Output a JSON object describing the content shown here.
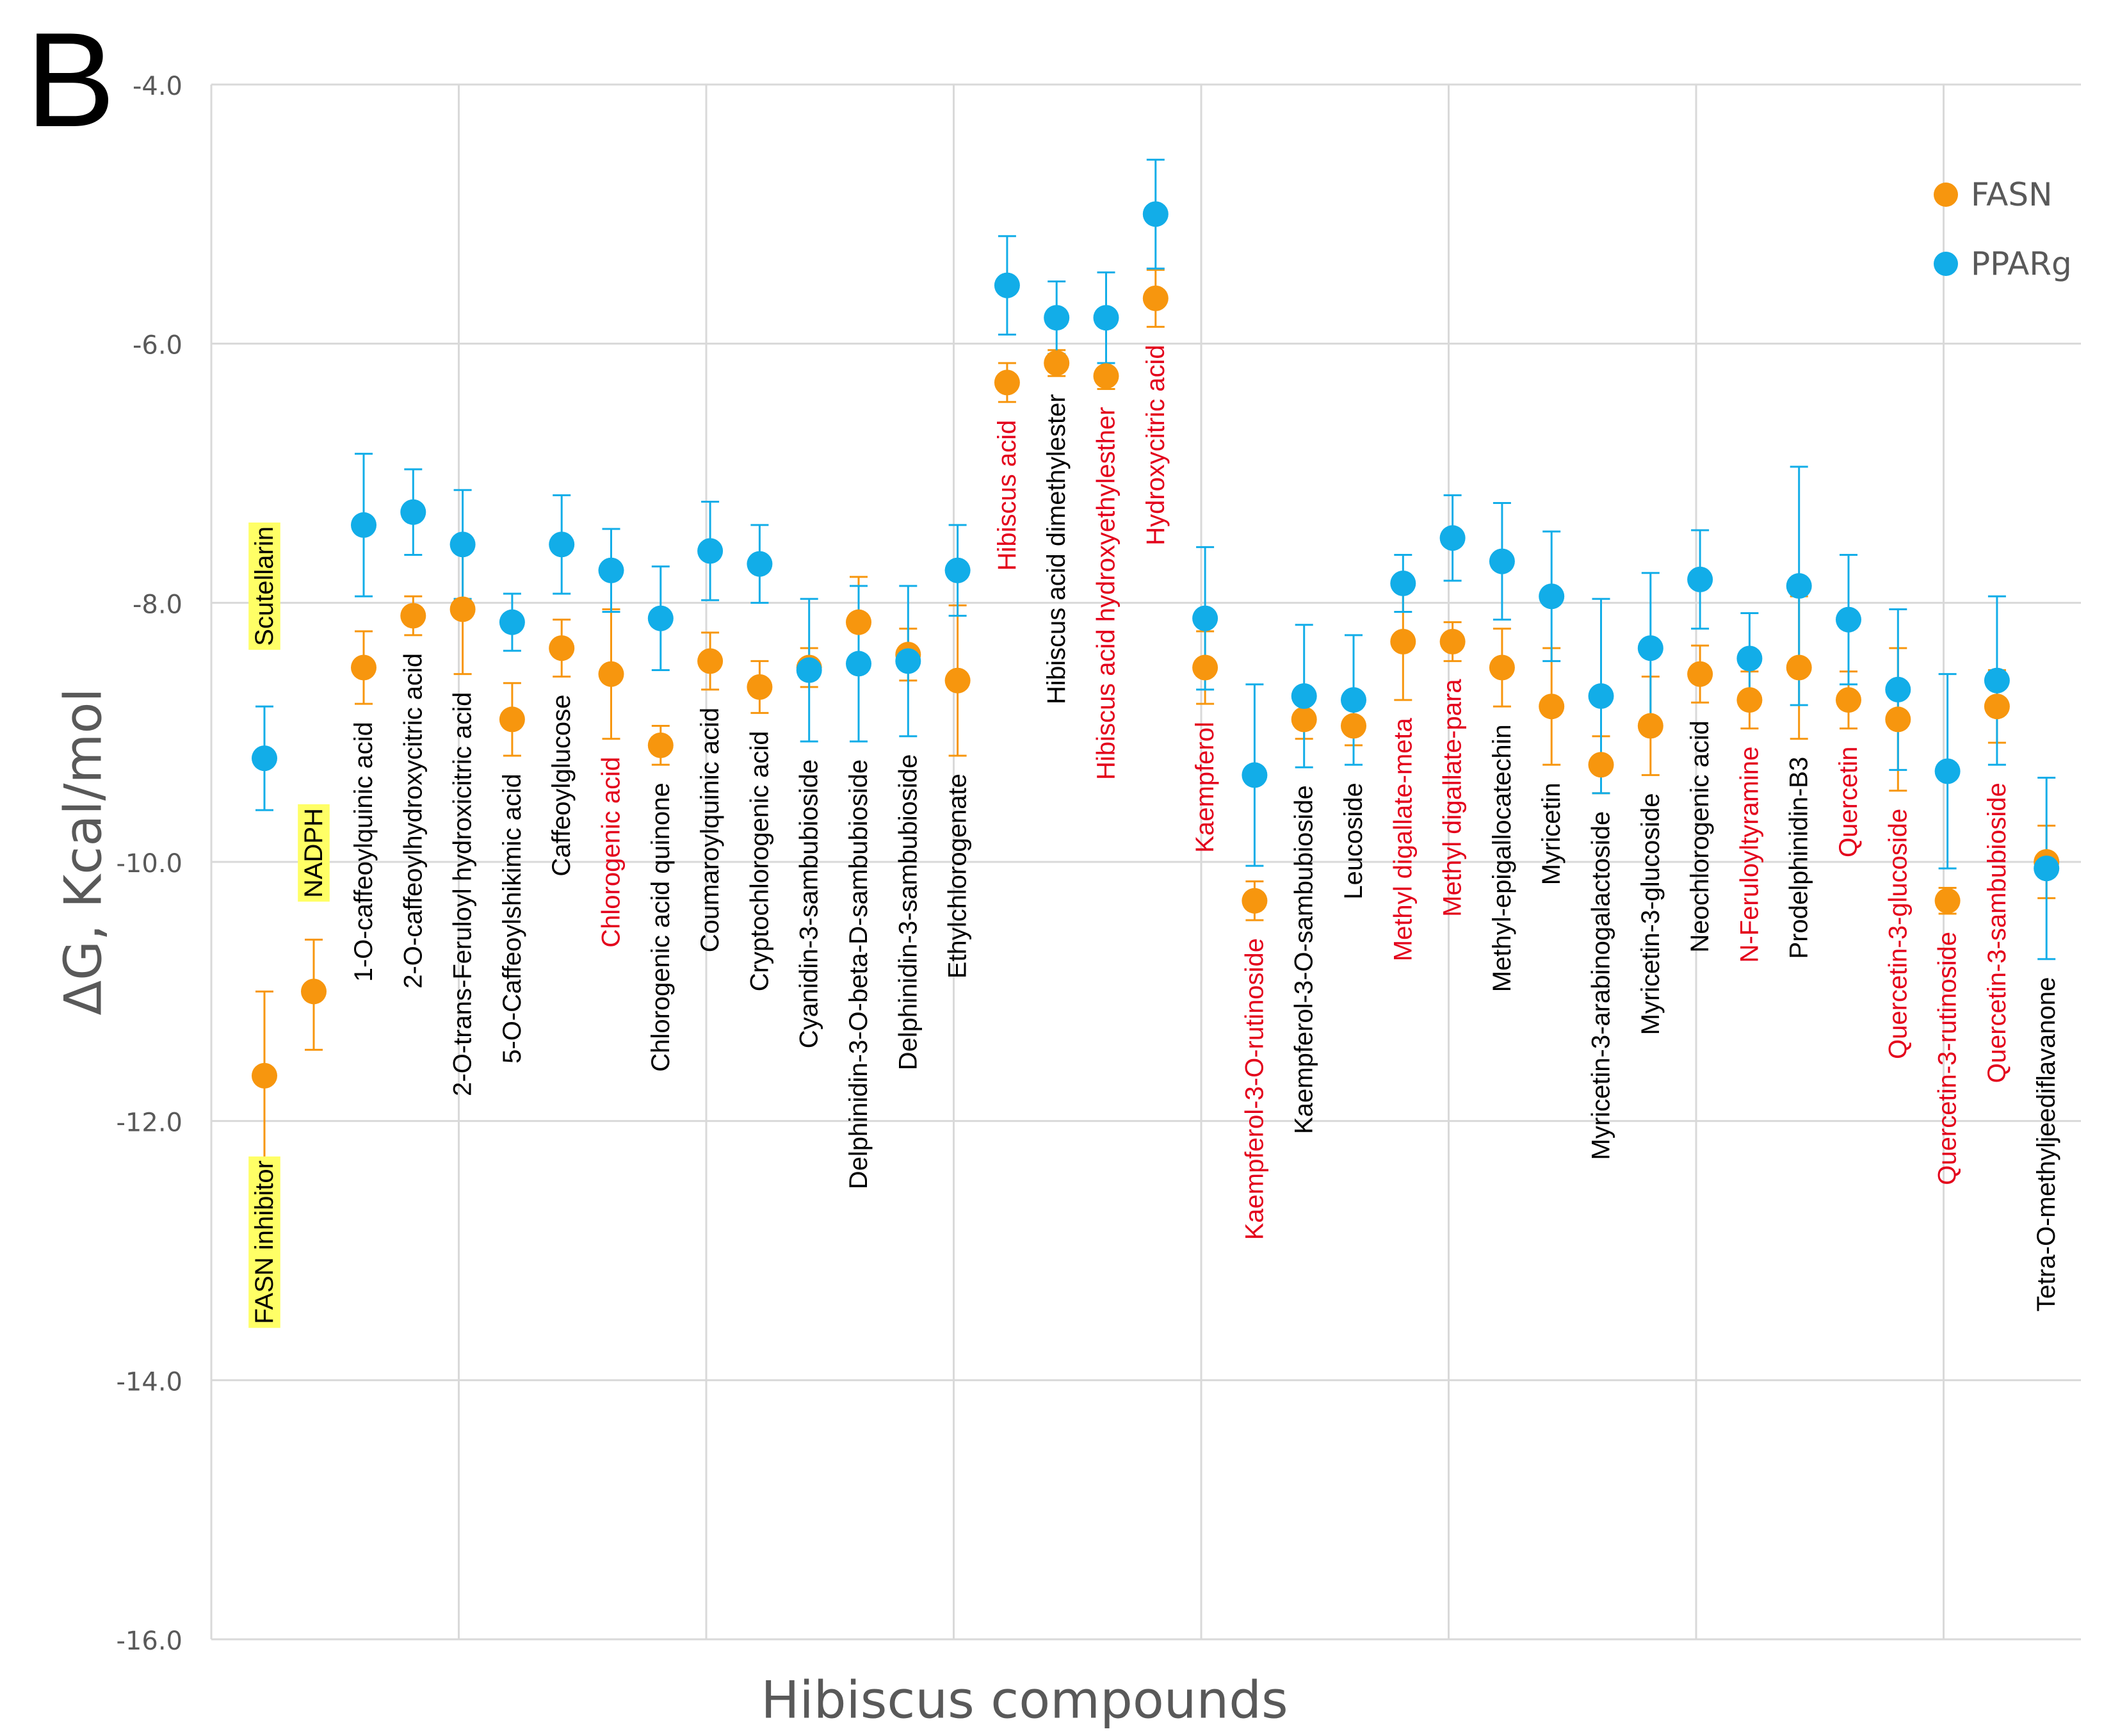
{
  "panel_label": "B",
  "colors": {
    "FASN": "#F7960E",
    "PPARg": "#12ADE8",
    "grid": "#D9D9D9",
    "highlight": "#FFFF66",
    "red_label": "#E3001B"
  },
  "chart_data": {
    "type": "scatter",
    "xlabel": "Hibiscus compounds",
    "ylabel": "ΔG, Kcal/mol",
    "ylim": [
      -16.0,
      -4.0
    ],
    "yticks": [
      -4.0,
      -6.0,
      -8.0,
      -10.0,
      -12.0,
      -14.0,
      -16.0
    ],
    "ytick_labels": [
      "-4.0",
      "-6.0",
      "-8.0",
      "-10.0",
      "-12.0",
      "-14.0",
      "-16.0"
    ],
    "grid": true,
    "legend_position": "top-right",
    "legend": [
      "FASN",
      "PPARg"
    ],
    "references": [
      {
        "label": "FASN inhibitor",
        "series": "FASN",
        "value": -11.65,
        "err_plus": 0.65,
        "err_minus": 0.65
      },
      {
        "label": "NADPH",
        "series": "FASN",
        "value": -11.0,
        "err_plus": 0.4,
        "err_minus": 0.45
      },
      {
        "label": "Scutellarin",
        "series": "PPARg",
        "value": -9.2,
        "err_plus": 0.4,
        "err_minus": 0.4
      }
    ],
    "compounds": [
      {
        "label": "1-O-caffeoylquinic acid",
        "red": false,
        "FASN": -8.5,
        "FASN_err": 0.28,
        "PPARg": -7.4,
        "PPARg_err": 0.55
      },
      {
        "label": "2-O-caffeoylhydroxycitric acid",
        "red": false,
        "FASN": -8.1,
        "FASN_err": 0.15,
        "PPARg": -7.3,
        "PPARg_err": 0.33
      },
      {
        "label": "2-O-trans-Feruloyl hydroxicitric acid",
        "red": false,
        "FASN": -8.05,
        "FASN_err": 0.5,
        "PPARg": -7.55,
        "PPARg_err": 0.42
      },
      {
        "label": "5-O-Caffeoylshikimic acid",
        "red": false,
        "FASN": -8.9,
        "FASN_err": 0.28,
        "PPARg": -8.15,
        "PPARg_err": 0.22
      },
      {
        "label": "Caffeoylglucose",
        "red": false,
        "FASN": -8.35,
        "FASN_err": 0.22,
        "PPARg": -7.55,
        "PPARg_err": 0.38
      },
      {
        "label": "Chlorogenic acid",
        "red": true,
        "FASN": -8.55,
        "FASN_err": 0.5,
        "PPARg": -7.75,
        "PPARg_err": 0.32
      },
      {
        "label": "Chlorogenic acid quinone",
        "red": false,
        "FASN": -9.1,
        "FASN_err": 0.15,
        "PPARg": -8.12,
        "PPARg_err": 0.4
      },
      {
        "label": "Coumaroylquinic acid",
        "red": false,
        "FASN": -8.45,
        "FASN_err": 0.22,
        "PPARg": -7.6,
        "PPARg_err": 0.38
      },
      {
        "label": "Cryptochlorogenic acid",
        "red": false,
        "FASN": -8.65,
        "FASN_err": 0.2,
        "PPARg": -7.7,
        "PPARg_err": 0.3
      },
      {
        "label": "Cyanidin-3-sambubioside",
        "red": false,
        "FASN": -8.5,
        "FASN_err": 0.15,
        "PPARg": -8.52,
        "PPARg_err": 0.55
      },
      {
        "label": "Delphinidin-3-O-beta-D-sambubioside",
        "red": false,
        "FASN": -8.15,
        "FASN_err": 0.35,
        "PPARg": -8.47,
        "PPARg_err": 0.6
      },
      {
        "label": "Delphinidin-3-sambubioside",
        "red": false,
        "FASN": -8.4,
        "FASN_err": 0.2,
        "PPARg": -8.45,
        "PPARg_err": 0.58
      },
      {
        "label": "Ethylchlorogenate",
        "red": false,
        "FASN": -8.6,
        "FASN_err": 0.58,
        "PPARg": -7.75,
        "PPARg_err": 0.35
      },
      {
        "label": "Hibiscus acid",
        "red": true,
        "FASN": -6.3,
        "FASN_err": 0.15,
        "PPARg": -5.55,
        "PPARg_err": 0.38
      },
      {
        "label": "Hibiscus acid dimethylester",
        "red": false,
        "FASN": -6.15,
        "FASN_err": 0.1,
        "PPARg": -5.8,
        "PPARg_err": 0.28
      },
      {
        "label": "Hibiscus acid hydroxyethylesther",
        "red": true,
        "FASN": -6.25,
        "FASN_err": 0.1,
        "PPARg": -5.8,
        "PPARg_err": 0.35
      },
      {
        "label": "Hydroxycitric acid",
        "red": true,
        "FASN": -5.65,
        "FASN_err": 0.22,
        "PPARg": -5.0,
        "PPARg_err": 0.42
      },
      {
        "label": "Kaempferol",
        "red": true,
        "FASN": -8.5,
        "FASN_err": 0.28,
        "PPARg": -8.12,
        "PPARg_err": 0.55
      },
      {
        "label": "Kaempferol-3-O-rutinoside",
        "red": true,
        "FASN": -10.3,
        "FASN_err": 0.15,
        "PPARg": -9.33,
        "PPARg_err": 0.7
      },
      {
        "label": "Kaempferol-3-O-sambubioside",
        "red": false,
        "FASN": -8.9,
        "FASN_err": 0.15,
        "PPARg": -8.72,
        "PPARg_err": 0.55
      },
      {
        "label": "Leucoside",
        "red": false,
        "FASN": -8.95,
        "FASN_err": 0.15,
        "PPARg": -8.75,
        "PPARg_err": 0.5
      },
      {
        "label": "Methyl digallate-meta",
        "red": true,
        "FASN": -8.3,
        "FASN_err": 0.45,
        "PPARg": -7.85,
        "PPARg_err": 0.22
      },
      {
        "label": "Methyl digallate-para",
        "red": true,
        "FASN": -8.3,
        "FASN_err": 0.15,
        "PPARg": -7.5,
        "PPARg_err": 0.33
      },
      {
        "label": "Methyl-epigallocatechin",
        "red": false,
        "FASN": -8.5,
        "FASN_err": 0.3,
        "PPARg": -7.68,
        "PPARg_err": 0.45
      },
      {
        "label": "Myricetin",
        "red": false,
        "FASN": -8.8,
        "FASN_err": 0.45,
        "PPARg": -7.95,
        "PPARg_err": 0.5
      },
      {
        "label": "Myricetin-3-arabinogalactoside",
        "red": false,
        "FASN": -9.25,
        "FASN_err": 0.22,
        "PPARg": -8.72,
        "PPARg_err": 0.75
      },
      {
        "label": "Myricetin-3-glucoside",
        "red": false,
        "FASN": -8.95,
        "FASN_err": 0.38,
        "PPARg": -8.35,
        "PPARg_err": 0.58
      },
      {
        "label": "Neochlorogenic acid",
        "red": false,
        "FASN": -8.55,
        "FASN_err": 0.22,
        "PPARg": -7.82,
        "PPARg_err": 0.38
      },
      {
        "label": "N-Feruloyltyramine",
        "red": true,
        "FASN": -8.75,
        "FASN_err": 0.22,
        "PPARg": -8.43,
        "PPARg_err": 0.35
      },
      {
        "label": "Prodelphinidin-B3",
        "red": false,
        "FASN": -8.5,
        "FASN_err": 0.55,
        "PPARg": -7.87,
        "PPARg_err": 0.92
      },
      {
        "label": "Quercetin",
        "red": true,
        "FASN": -8.75,
        "FASN_err": 0.22,
        "PPARg": -8.13,
        "PPARg_err": 0.5
      },
      {
        "label": "Quercetin-3-glucoside",
        "red": true,
        "FASN": -8.9,
        "FASN_err": 0.55,
        "PPARg": -8.67,
        "PPARg_err": 0.62
      },
      {
        "label": "Quercetin-3-rutinoside",
        "red": true,
        "FASN": -10.3,
        "FASN_err": 0.1,
        "PPARg": -9.3,
        "PPARg_err": 0.75
      },
      {
        "label": "Quercetin-3-sambubioside",
        "red": true,
        "FASN": -8.8,
        "FASN_err": 0.28,
        "PPARg": -8.6,
        "PPARg_err": 0.65
      },
      {
        "label": "Tetra-O-methyljeediflavanone",
        "red": false,
        "FASN": -10.0,
        "FASN_err": 0.28,
        "PPARg": -10.05,
        "PPARg_err": 0.7
      }
    ]
  }
}
